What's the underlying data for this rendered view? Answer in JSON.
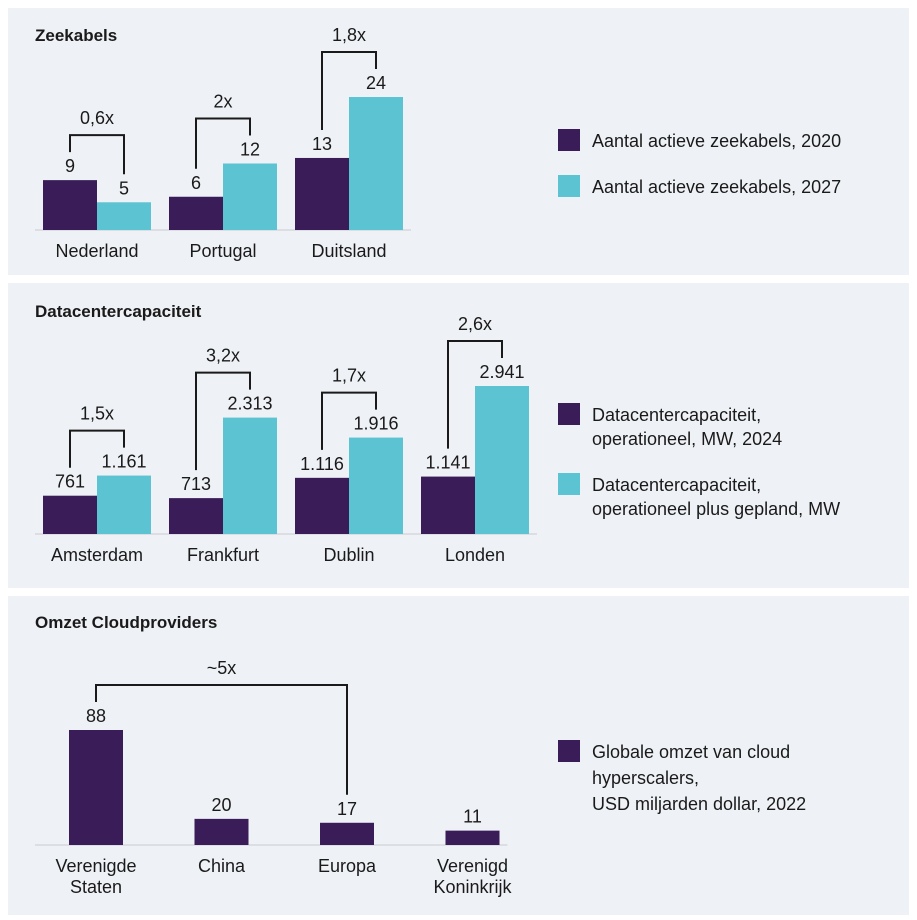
{
  "chart_data": [
    {
      "type": "bar",
      "title": "Zeekabels",
      "categories": [
        "Nederland",
        "Portugal",
        "Duitsland"
      ],
      "series": [
        {
          "name": "Aantal actieve zeekabels, 2020",
          "color": "#3a1d58",
          "values": [
            9,
            6,
            13
          ]
        },
        {
          "name": "Aantal actieve zeekabels, 2027",
          "color": "#5bc3d1",
          "values": [
            5,
            12,
            24
          ]
        }
      ],
      "annotations": [
        "0,6x",
        "2x",
        "1,8x"
      ]
    },
    {
      "type": "bar",
      "title": "Datacentercapaciteit",
      "categories": [
        "Amsterdam",
        "Frankfurt",
        "Dublin",
        "Londen"
      ],
      "series": [
        {
          "name": "Datacentercapaciteit,\noperationeel, MW, 2024",
          "color": "#3a1d58",
          "values": [
            761,
            713,
            1116,
            1141
          ],
          "value_labels": [
            "761",
            "713",
            "1.116",
            "1.141"
          ]
        },
        {
          "name": "Datacentercapaciteit,\noperationeel plus gepland, MW",
          "color": "#5bc3d1",
          "values": [
            1161,
            2313,
            1916,
            2941
          ],
          "value_labels": [
            "1.161",
            "2.313",
            "1.916",
            "2.941"
          ]
        }
      ],
      "annotations": [
        "1,5x",
        "3,2x",
        "1,7x",
        "2,6x"
      ]
    },
    {
      "type": "bar",
      "title": "Omzet Cloudproviders",
      "categories": [
        "Verenigde\nStaten",
        "China",
        "Europa",
        "Verenigd\nKoninkrijk"
      ],
      "series": [
        {
          "name": "Globale omzet van cloud\nhyperscalers,\nUSD miljarden dollar, 2022",
          "color": "#3a1d58",
          "values": [
            88,
            20,
            17,
            11
          ]
        }
      ],
      "annotations": [
        "~5x"
      ]
    }
  ]
}
